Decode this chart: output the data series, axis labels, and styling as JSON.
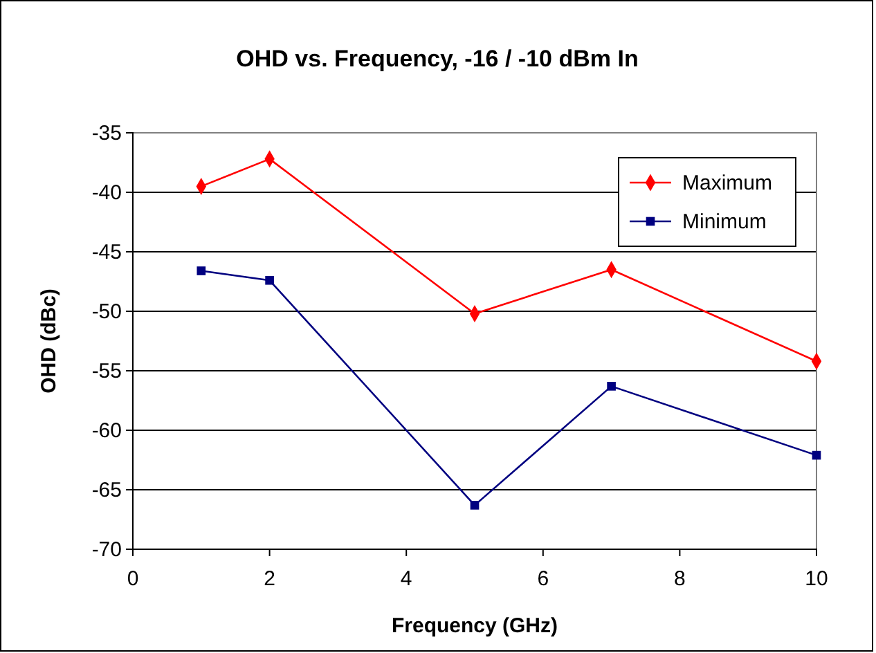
{
  "chart_data": {
    "type": "line",
    "title": "OHD vs. Frequency, -16 / -10 dBm In",
    "xlabel": "Frequency (GHz)",
    "ylabel": "OHD (dBc)",
    "x": [
      1,
      2,
      5,
      7,
      10
    ],
    "series": [
      {
        "name": "Maximum",
        "color": "#ff0000",
        "marker": "diamond",
        "values": [
          -39.5,
          -37.2,
          -50.2,
          -46.5,
          -54.2
        ]
      },
      {
        "name": "Minimum",
        "color": "#000080",
        "marker": "square",
        "values": [
          -46.6,
          -47.4,
          -66.3,
          -56.3,
          -62.1
        ]
      }
    ],
    "xlim": [
      0,
      10
    ],
    "xticks": [
      0,
      2,
      4,
      6,
      8,
      10
    ],
    "ylim": [
      -70,
      -35
    ],
    "yticks": [
      -70,
      -65,
      -60,
      -55,
      -50,
      -45,
      -40,
      -35
    ],
    "grid": "y",
    "legend": "top right",
    "line_style": "solid"
  }
}
